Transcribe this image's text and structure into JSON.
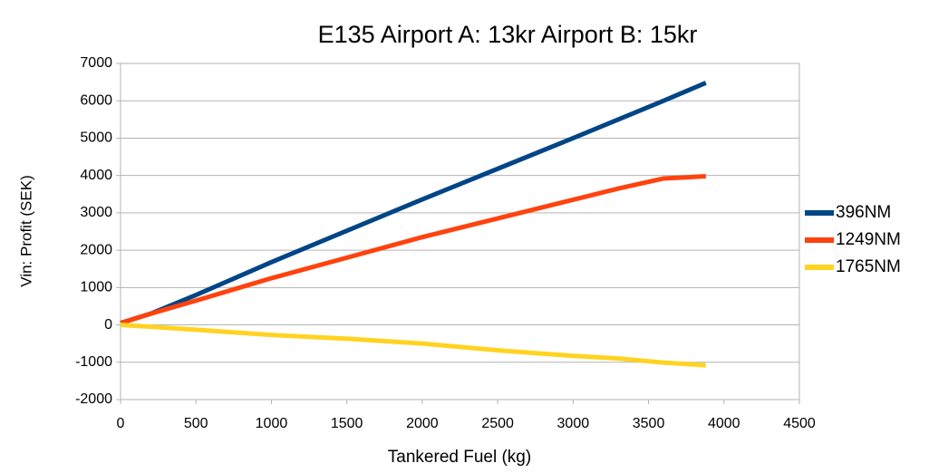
{
  "chart_data": {
    "type": "line",
    "title": "E135 Airport A: 13kr Airport B: 15kr",
    "x_label": "Tankered Fuel (kg)",
    "y_label": "Vin: Profit (SEK)",
    "x": [
      0,
      200,
      500,
      1000,
      1500,
      2000,
      2500,
      3000,
      3300,
      3600,
      3880
    ],
    "series": [
      {
        "name": "396NM",
        "color": "#004586",
        "values": [
          50,
          300,
          800,
          1680,
          2520,
          3360,
          4180,
          5000,
          5500,
          6000,
          6480
        ]
      },
      {
        "name": "1249NM",
        "color": "#ff420e",
        "values": [
          50,
          300,
          650,
          1250,
          1800,
          2350,
          2850,
          3350,
          3650,
          3920,
          3980
        ]
      },
      {
        "name": "1765NM",
        "color": "#ffd320",
        "values": [
          0,
          -50,
          -130,
          -270,
          -370,
          -500,
          -680,
          -830,
          -900,
          -1010,
          -1080
        ]
      }
    ],
    "xlim": [
      0,
      4500
    ],
    "xticks": [
      0,
      500,
      1000,
      1500,
      2000,
      2500,
      3000,
      3500,
      4000,
      4500
    ],
    "ylim": [
      -2000,
      7000
    ],
    "yticks": [
      -2000,
      -1000,
      0,
      1000,
      2000,
      3000,
      4000,
      5000,
      6000,
      7000
    ],
    "grid": true,
    "legend": "right"
  }
}
